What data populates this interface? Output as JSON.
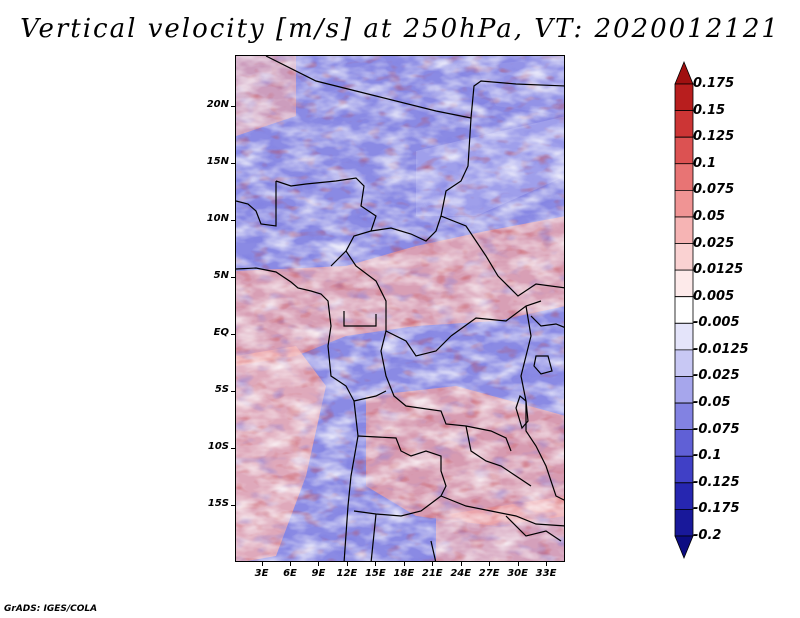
{
  "title": "Vertical velocity [m/s] at 250hPa, VT: 2020012121",
  "footer": "GrADS: IGES/COLA",
  "map": {
    "lat_labels": [
      {
        "label": "20N",
        "value": 20
      },
      {
        "label": "15N",
        "value": 15
      },
      {
        "label": "10N",
        "value": 10
      },
      {
        "label": "5N",
        "value": 5
      },
      {
        "label": "EQ",
        "value": 0
      },
      {
        "label": "5S",
        "value": -5
      },
      {
        "label": "10S",
        "value": -10
      },
      {
        "label": "15S",
        "value": -15
      }
    ],
    "lon_labels": [
      {
        "label": "3E",
        "value": 3
      },
      {
        "label": "6E",
        "value": 6
      },
      {
        "label": "9E",
        "value": 9
      },
      {
        "label": "12E",
        "value": 12
      },
      {
        "label": "15E",
        "value": 15
      },
      {
        "label": "18E",
        "value": 18
      },
      {
        "label": "21E",
        "value": 21
      },
      {
        "label": "24E",
        "value": 24
      },
      {
        "label": "27E",
        "value": 27
      },
      {
        "label": "30E",
        "value": 30
      },
      {
        "label": "33E",
        "value": 33
      }
    ],
    "lat_range": [
      -20,
      24.5
    ],
    "lon_range": [
      0.2,
      35
    ]
  },
  "colorbar": {
    "labels": [
      "0.175",
      "0.15",
      "0.125",
      "0.1",
      "0.075",
      "0.05",
      "0.025",
      "0.0125",
      "0.005",
      "-0.005",
      "-0.0125",
      "-0.025",
      "-0.05",
      "-0.075",
      "-0.1",
      "-0.125",
      "-0.175",
      "-0.2"
    ],
    "colors": [
      "#a01010",
      "#b81e1e",
      "#cc3535",
      "#dc5252",
      "#e87474",
      "#f09494",
      "#f6b4b4",
      "#fad2d2",
      "#fdeaea",
      "#ffffff",
      "#e4e4fa",
      "#c8c8f4",
      "#a6a6ec",
      "#8282e2",
      "#6060d6",
      "#4040c6",
      "#2626b0",
      "#18189a",
      "#0c0c82"
    ]
  }
}
